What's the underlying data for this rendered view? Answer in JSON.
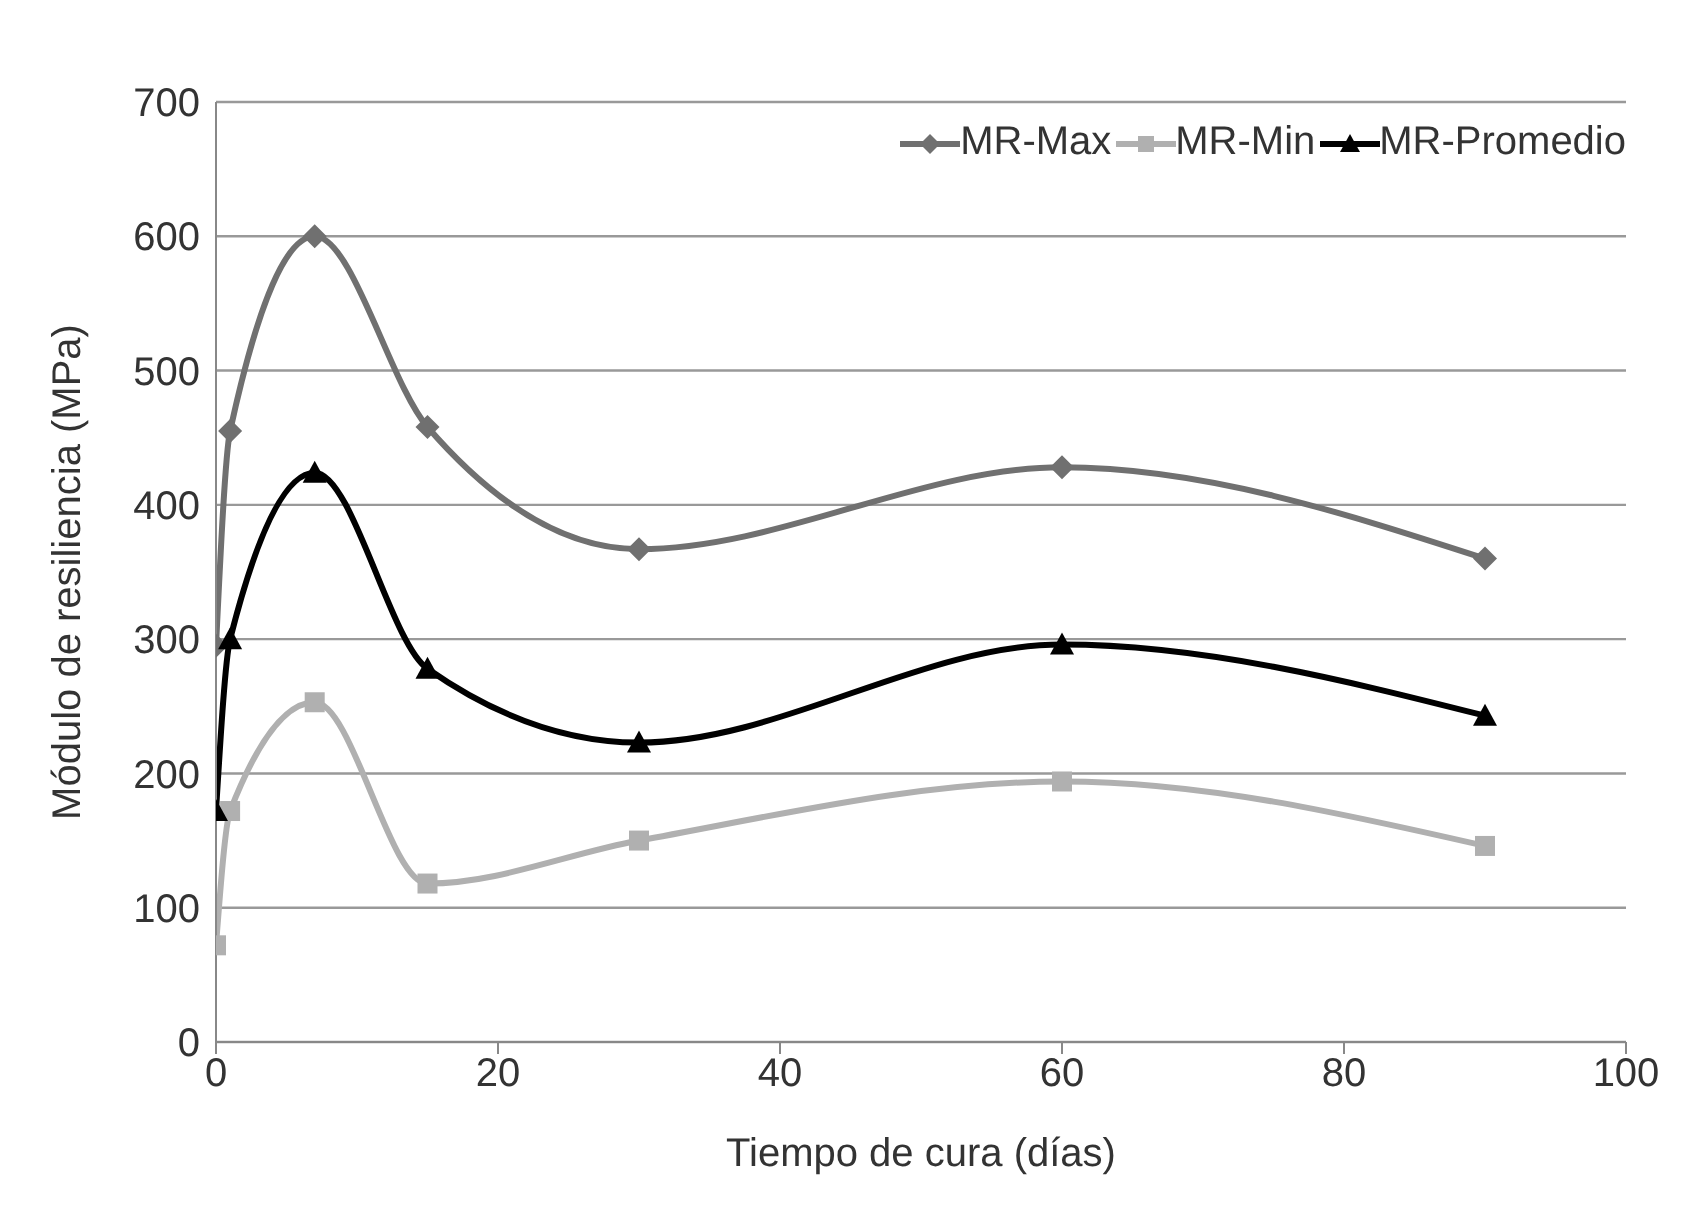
{
  "chart_data": {
    "type": "line",
    "xlabel": "Tiempo de cura (días)",
    "ylabel": "Módulo de resiliencia (MPa)",
    "x": [
      0,
      1,
      7,
      15,
      30,
      60,
      90
    ],
    "series": [
      {
        "name": "MR-Max",
        "color": "#707070",
        "marker": "diamond",
        "values": [
          295,
          455,
          600,
          458,
          367,
          428,
          360
        ]
      },
      {
        "name": "MR-Min",
        "color": "#b0b0b0",
        "marker": "square",
        "values": [
          72,
          172,
          253,
          118,
          150,
          194,
          146
        ]
      },
      {
        "name": "MR-Promedio",
        "color": "#000000",
        "marker": "triangle",
        "values": [
          172,
          300,
          424,
          278,
          223,
          296,
          243
        ]
      }
    ],
    "xlim": [
      0,
      100
    ],
    "xticks": [
      0,
      20,
      40,
      60,
      80,
      100
    ],
    "ylim": [
      0,
      700
    ],
    "yticks": [
      0,
      100,
      200,
      300,
      400,
      500,
      600,
      700
    ],
    "grid": "y",
    "legend": "top right",
    "line_style": "solid"
  }
}
